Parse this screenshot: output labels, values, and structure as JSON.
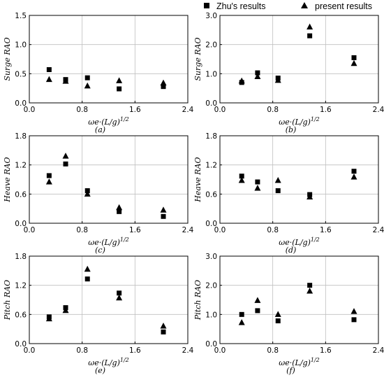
{
  "legend": {
    "position": "top-right",
    "entries": [
      {
        "name": "Zhu's results",
        "marker": "square"
      },
      {
        "name": "present results",
        "marker": "triangle"
      }
    ]
  },
  "chart_data": [
    {
      "type": "scatter",
      "panel_label": "(a)",
      "ylabel": "Surge RAO",
      "xlabel": "ωe·(L/g)^1/2",
      "xlim": [
        0.0,
        2.4
      ],
      "xticks": [
        "0.0",
        "0.8",
        "1.6",
        "2.4"
      ],
      "ylim": [
        0.0,
        1.5
      ],
      "yticks": [
        "0.0",
        "0.5",
        "1.0",
        "1.5"
      ],
      "grid": true,
      "series": [
        {
          "name": "Zhu's results",
          "marker": "square",
          "points": [
            [
              0.3,
              0.57
            ],
            [
              0.55,
              0.4
            ],
            [
              0.88,
              0.43
            ],
            [
              1.36,
              0.24
            ],
            [
              2.03,
              0.28
            ]
          ]
        },
        {
          "name": "present results",
          "marker": "triangle",
          "points": [
            [
              0.3,
              0.4
            ],
            [
              0.55,
              0.37
            ],
            [
              0.88,
              0.29
            ],
            [
              1.36,
              0.38
            ],
            [
              2.03,
              0.34
            ]
          ]
        }
      ]
    },
    {
      "type": "scatter",
      "panel_label": "(b)",
      "ylabel": "Surge RAO",
      "xlabel": "ωe·(L/g)^1/2",
      "xlim": [
        0.0,
        2.4
      ],
      "xticks": [
        "0.0",
        "0.8",
        "1.6",
        "2.4"
      ],
      "ylim": [
        0.0,
        3.0
      ],
      "yticks": [
        "0.0",
        "1.0",
        "2.0",
        "3.0"
      ],
      "grid": true,
      "series": [
        {
          "name": "Zhu's results",
          "marker": "square",
          "points": [
            [
              0.33,
              0.7
            ],
            [
              0.57,
              1.03
            ],
            [
              0.88,
              0.85
            ],
            [
              1.36,
              2.3
            ],
            [
              2.03,
              1.55
            ]
          ]
        },
        {
          "name": "present results",
          "marker": "triangle",
          "points": [
            [
              0.33,
              0.75
            ],
            [
              0.57,
              0.9
            ],
            [
              0.88,
              0.77
            ],
            [
              1.36,
              2.6
            ],
            [
              2.03,
              1.35
            ]
          ]
        }
      ]
    },
    {
      "type": "scatter",
      "panel_label": "(c)",
      "ylabel": "Heave RAO",
      "xlabel": "ωe·(L/g)^1/2",
      "xlim": [
        0.0,
        2.4
      ],
      "xticks": [
        "0.0",
        "0.8",
        "1.6",
        "2.4"
      ],
      "ylim": [
        0.0,
        1.8
      ],
      "yticks": [
        "0.0",
        "0.6",
        "1.2",
        "1.8"
      ],
      "grid": true,
      "series": [
        {
          "name": "Zhu's results",
          "marker": "square",
          "points": [
            [
              0.3,
              0.98
            ],
            [
              0.55,
              1.22
            ],
            [
              0.88,
              0.67
            ],
            [
              1.36,
              0.24
            ],
            [
              2.03,
              0.14
            ]
          ]
        },
        {
          "name": "present results",
          "marker": "triangle",
          "points": [
            [
              0.3,
              0.85
            ],
            [
              0.55,
              1.38
            ],
            [
              0.88,
              0.6
            ],
            [
              1.36,
              0.32
            ],
            [
              2.03,
              0.27
            ]
          ]
        }
      ]
    },
    {
      "type": "scatter",
      "panel_label": "(d)",
      "ylabel": "Heave RAO",
      "xlabel": "ωe·(L/g)^1/2",
      "xlim": [
        0.0,
        2.4
      ],
      "xticks": [
        "0.0",
        "0.8",
        "1.6",
        "2.4"
      ],
      "ylim": [
        0.0,
        1.8
      ],
      "yticks": [
        "0.0",
        "0.6",
        "1.2",
        "1.8"
      ],
      "grid": true,
      "series": [
        {
          "name": "Zhu's results",
          "marker": "square",
          "points": [
            [
              0.33,
              0.97
            ],
            [
              0.57,
              0.85
            ],
            [
              0.88,
              0.67
            ],
            [
              1.36,
              0.59
            ],
            [
              2.03,
              1.07
            ]
          ]
        },
        {
          "name": "present results",
          "marker": "triangle",
          "points": [
            [
              0.33,
              0.88
            ],
            [
              0.57,
              0.72
            ],
            [
              0.88,
              0.88
            ],
            [
              1.36,
              0.54
            ],
            [
              2.03,
              0.95
            ]
          ]
        }
      ]
    },
    {
      "type": "scatter",
      "panel_label": "(e)",
      "ylabel": "Pitch RAO",
      "xlabel": "ωe·(L/g)^1/2",
      "xlim": [
        0.0,
        2.4
      ],
      "xticks": [
        "0.0",
        "0.8",
        "1.6",
        "2.4"
      ],
      "ylim": [
        0.0,
        1.8
      ],
      "yticks": [
        "0.0",
        "0.6",
        "1.2",
        "1.8"
      ],
      "grid": true,
      "series": [
        {
          "name": "Zhu's results",
          "marker": "square",
          "points": [
            [
              0.3,
              0.55
            ],
            [
              0.55,
              0.74
            ],
            [
              0.88,
              1.33
            ],
            [
              1.36,
              1.04
            ],
            [
              2.03,
              0.24
            ]
          ]
        },
        {
          "name": "present results",
          "marker": "triangle",
          "points": [
            [
              0.3,
              0.51
            ],
            [
              0.55,
              0.68
            ],
            [
              0.88,
              1.53
            ],
            [
              1.36,
              0.94
            ],
            [
              2.03,
              0.36
            ]
          ]
        }
      ]
    },
    {
      "type": "scatter",
      "panel_label": "(f)",
      "ylabel": "Pitch RAO",
      "xlabel": "ωe·(L/g)^1/2",
      "xlim": [
        0.0,
        2.4
      ],
      "xticks": [
        "0.0",
        "0.8",
        "1.6",
        "2.4"
      ],
      "ylim": [
        0.0,
        3.0
      ],
      "yticks": [
        "0.0",
        "1.0",
        "2.0",
        "3.0"
      ],
      "grid": true,
      "series": [
        {
          "name": "Zhu's results",
          "marker": "square",
          "points": [
            [
              0.33,
              1.0
            ],
            [
              0.57,
              1.13
            ],
            [
              0.88,
              0.78
            ],
            [
              1.36,
              2.0
            ],
            [
              2.03,
              0.82
            ]
          ]
        },
        {
          "name": "present results",
          "marker": "triangle",
          "points": [
            [
              0.33,
              0.72
            ],
            [
              0.57,
              1.48
            ],
            [
              0.88,
              1.0
            ],
            [
              1.36,
              1.8
            ],
            [
              2.03,
              1.1
            ]
          ]
        }
      ]
    }
  ]
}
